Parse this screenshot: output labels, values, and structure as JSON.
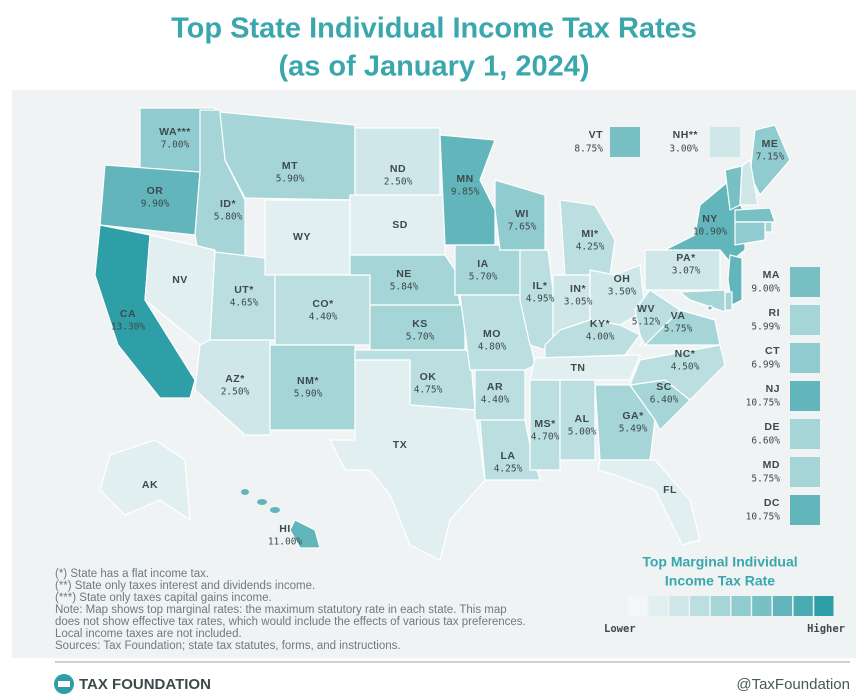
{
  "header": {
    "title_lines": [
      "Top State Individual Income Tax Rates",
      "(as of January 1, 2024)"
    ]
  },
  "states": [
    {
      "label": "WA***",
      "rate": 7.0,
      "rate_label": "7.00%"
    },
    {
      "label": "OR",
      "rate": 9.9,
      "rate_label": "9.90%"
    },
    {
      "label": "CA",
      "rate": 13.3,
      "rate_label": "13.30%"
    },
    {
      "label": "ID*",
      "rate": 5.8,
      "rate_label": "5.80%"
    },
    {
      "label": "NV"
    },
    {
      "label": "MT",
      "rate": 5.9,
      "rate_label": "5.90%"
    },
    {
      "label": "WY"
    },
    {
      "label": "UT*",
      "rate": 4.65,
      "rate_label": "4.65%"
    },
    {
      "label": "AZ*",
      "rate": 2.5,
      "rate_label": "2.50%"
    },
    {
      "label": "CO*",
      "rate": 4.4,
      "rate_label": "4.40%"
    },
    {
      "label": "NM*",
      "rate": 5.9,
      "rate_label": "5.90%"
    },
    {
      "label": "ND",
      "rate": 2.5,
      "rate_label": "2.50%"
    },
    {
      "label": "SD"
    },
    {
      "label": "NE",
      "rate": 5.84,
      "rate_label": "5.84%"
    },
    {
      "label": "KS",
      "rate": 5.7,
      "rate_label": "5.70%"
    },
    {
      "label": "OK",
      "rate": 4.75,
      "rate_label": "4.75%"
    },
    {
      "label": "TX"
    },
    {
      "label": "MN",
      "rate": 9.85,
      "rate_label": "9.85%"
    },
    {
      "label": "IA",
      "rate": 5.7,
      "rate_label": "5.70%"
    },
    {
      "label": "MO",
      "rate": 4.8,
      "rate_label": "4.80%"
    },
    {
      "label": "AR",
      "rate": 4.4,
      "rate_label": "4.40%"
    },
    {
      "label": "LA",
      "rate": 4.25,
      "rate_label": "4.25%"
    },
    {
      "label": "WI",
      "rate": 7.65,
      "rate_label": "7.65%"
    },
    {
      "label": "IL*",
      "rate": 4.95,
      "rate_label": "4.95%"
    },
    {
      "label": "MI*",
      "rate": 4.25,
      "rate_label": "4.25%"
    },
    {
      "label": "IN*",
      "rate": 3.05,
      "rate_label": "3.05%"
    },
    {
      "label": "OH",
      "rate": 3.5,
      "rate_label": "3.50%"
    },
    {
      "label": "KY*",
      "rate": 4.0,
      "rate_label": "4.00%"
    },
    {
      "label": "TN"
    },
    {
      "label": "MS*",
      "rate": 4.7,
      "rate_label": "4.70%"
    },
    {
      "label": "AL",
      "rate": 5.0,
      "rate_label": "5.00%"
    },
    {
      "label": "GA*",
      "rate": 5.49,
      "rate_label": "5.49%"
    },
    {
      "label": "FL"
    },
    {
      "label": "SC",
      "rate": 6.4,
      "rate_label": "6.40%"
    },
    {
      "label": "NC*",
      "rate": 4.5,
      "rate_label": "4.50%"
    },
    {
      "label": "VA",
      "rate": 5.75,
      "rate_label": "5.75%"
    },
    {
      "label": "WV",
      "rate": 5.12,
      "rate_label": "5.12%"
    },
    {
      "label": "PA*",
      "rate": 3.07,
      "rate_label": "3.07%"
    },
    {
      "label": "NY",
      "rate": 10.9,
      "rate_label": "10.90%"
    },
    {
      "label": "ME",
      "rate": 7.15,
      "rate_label": "7.15%"
    },
    {
      "label": "AK"
    },
    {
      "label": "HI",
      "rate": 11.0,
      "rate_label": "11.00%"
    },
    {
      "label": "VT",
      "rate": 8.75,
      "rate_label": "8.75%"
    },
    {
      "label": "NH**",
      "rate": 3.0,
      "rate_label": "3.00%"
    },
    {
      "label": "MA",
      "rate": 9.0,
      "rate_label": "9.00%"
    },
    {
      "label": "RI",
      "rate": 5.99,
      "rate_label": "5.99%"
    },
    {
      "label": "CT",
      "rate": 6.99,
      "rate_label": "6.99%"
    },
    {
      "label": "NJ",
      "rate": 10.75,
      "rate_label": "10.75%"
    },
    {
      "label": "DE",
      "rate": 6.6,
      "rate_label": "6.60%"
    },
    {
      "label": "MD",
      "rate": 5.75,
      "rate_label": "5.75%"
    },
    {
      "label": "DC",
      "rate": 10.75,
      "rate_label": "10.75%"
    }
  ],
  "legend": {
    "title_lines": [
      "Top Marginal Individual",
      "Income Tax Rate"
    ],
    "low": "Lower",
    "high": "Higher",
    "colors": [
      "#f4f7f7",
      "#e2eff0",
      "#cfe7e9",
      "#bbdfe1",
      "#a6d5d8",
      "#90cbcf",
      "#79c0c5",
      "#62b5bb",
      "#4aabb2",
      "#2f9fa7"
    ]
  },
  "notes": [
    "(*) State has a flat income tax.",
    "(**) State only taxes interest and dividends income.",
    "(***) State only taxes capital gains income.",
    "Note: Map shows top marginal rates: the maximum statutory rate in each state. This map",
    "does not show effective tax rates, which would include the effects of various tax preferences.",
    "Local income taxes are not included.",
    "Sources: Tax Foundation; state tax statutes, forms, and instructions."
  ],
  "footer": {
    "brand": "TAX FOUNDATION",
    "handle": "@TaxFoundation"
  }
}
